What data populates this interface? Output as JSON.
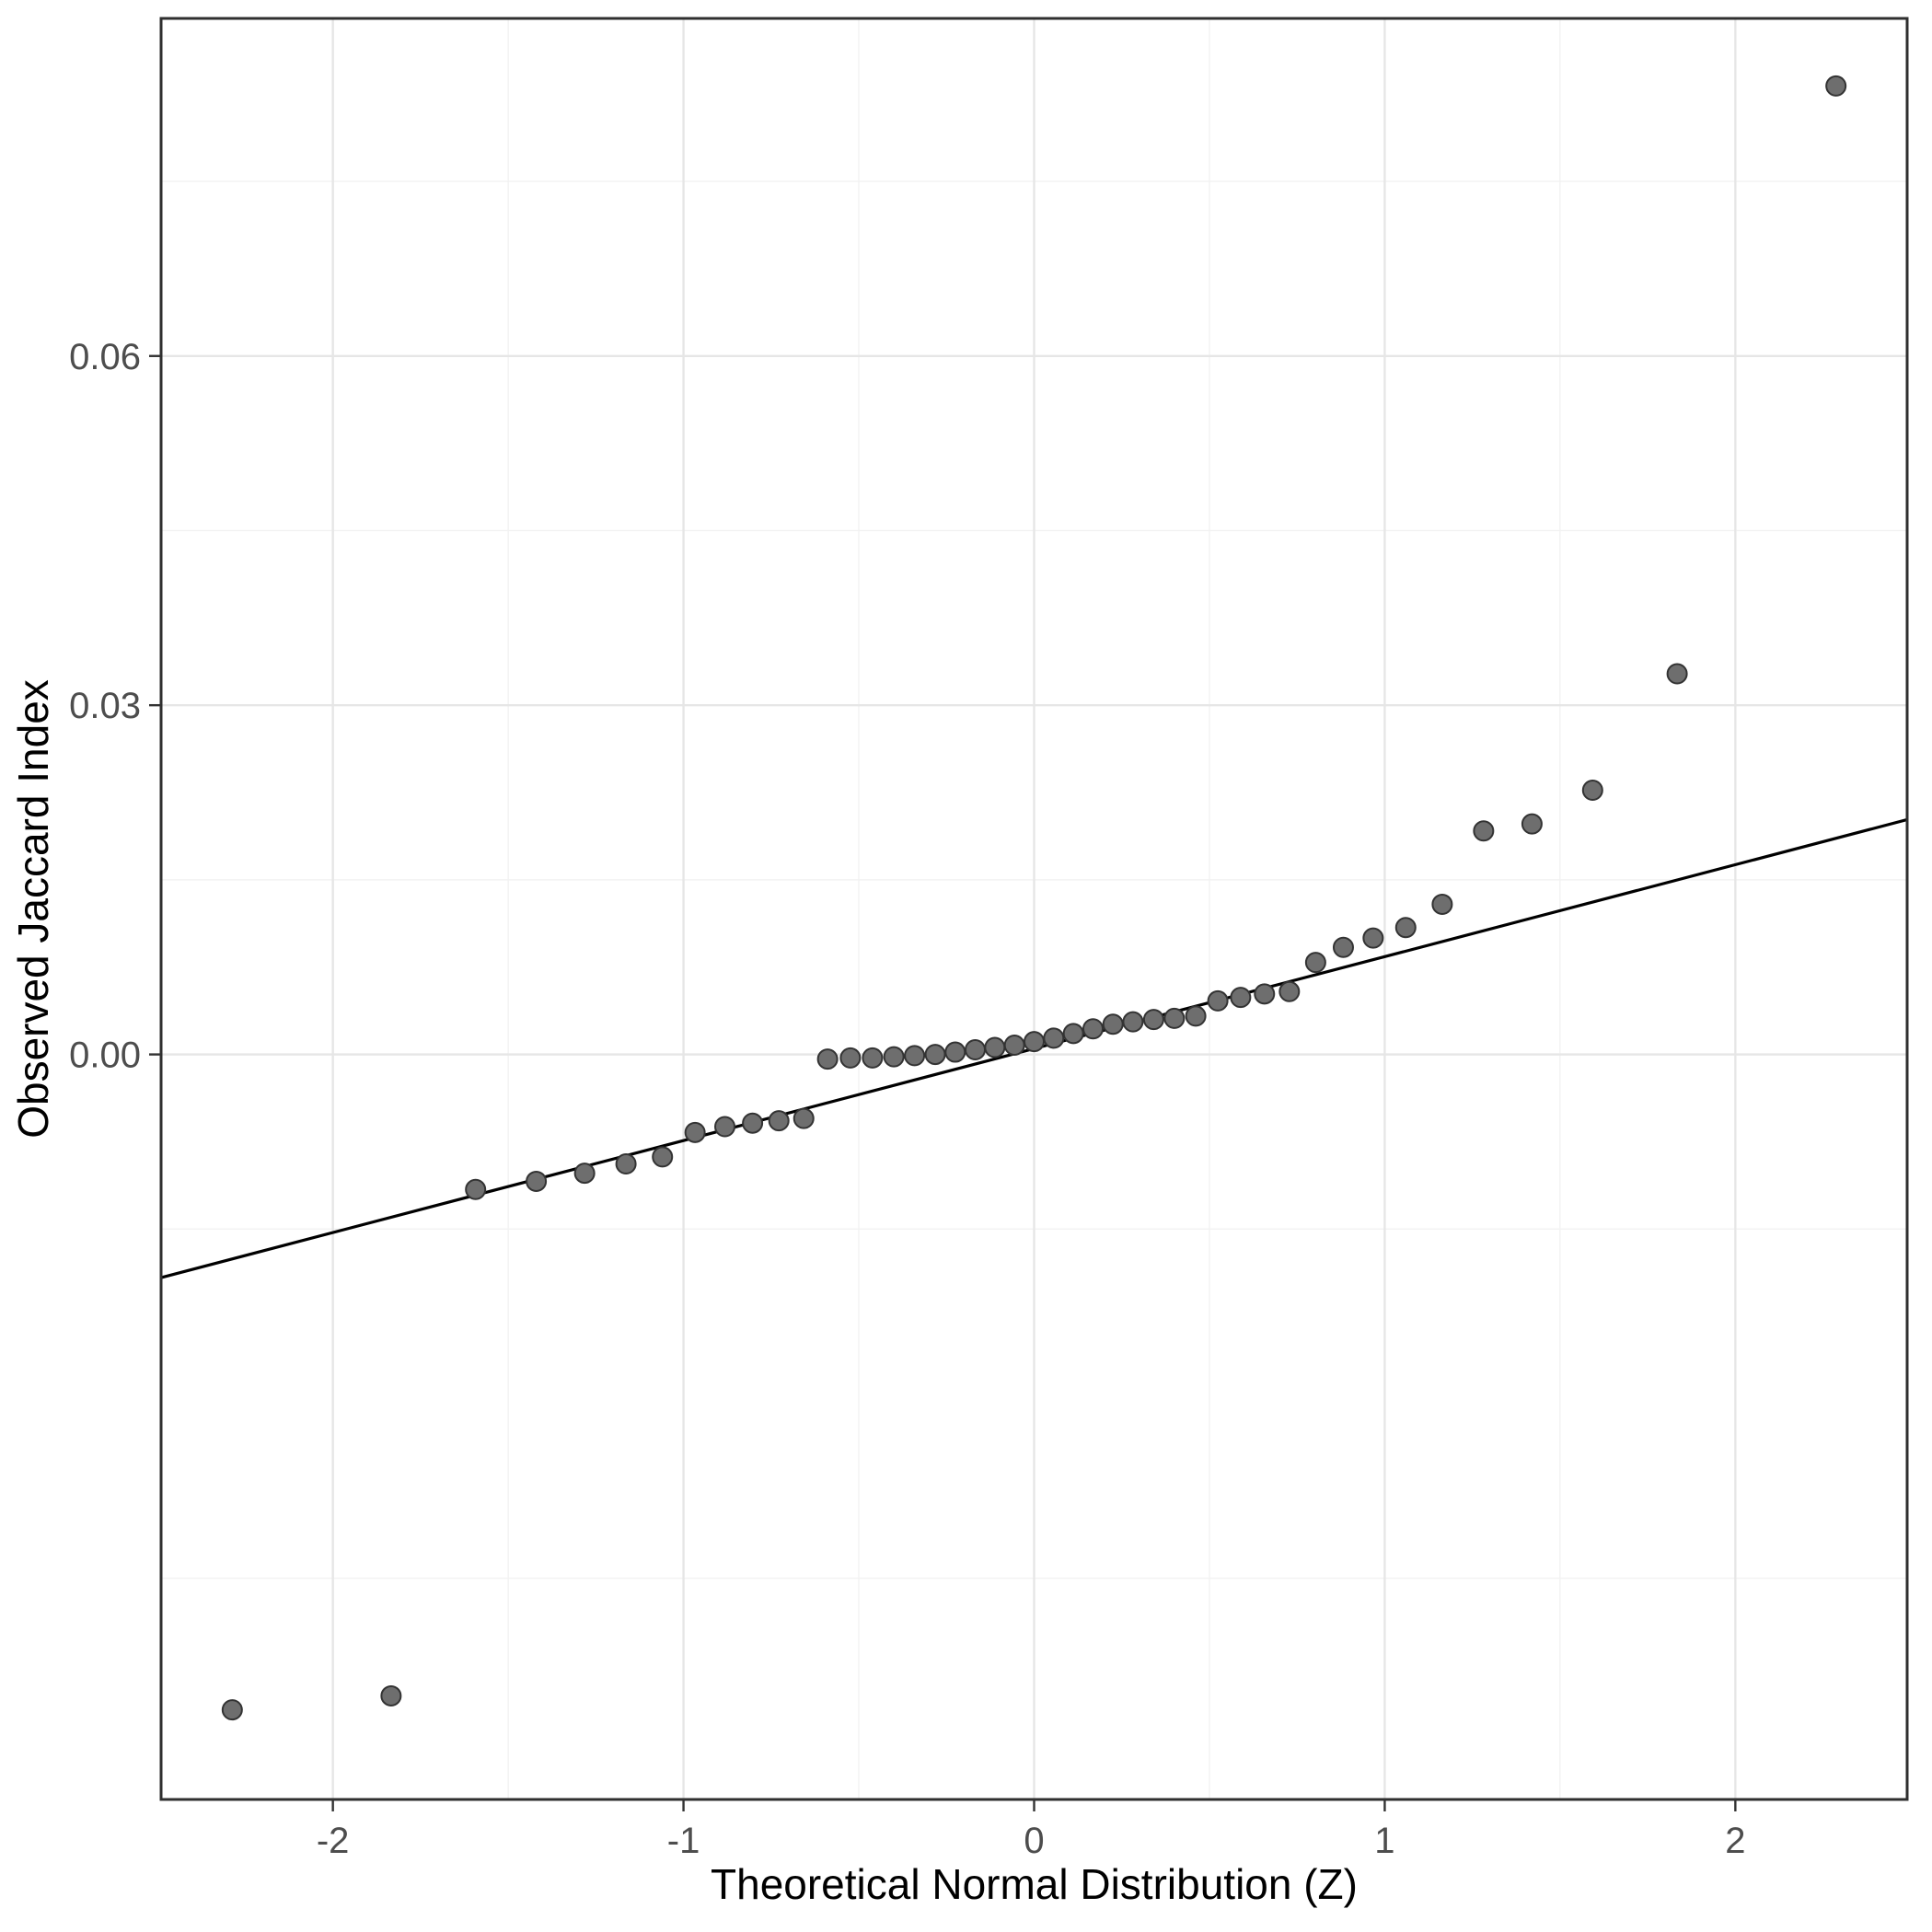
{
  "chart_data": {
    "type": "scatter",
    "title": "",
    "xlabel": "Theoretical Normal Distribution (Z)",
    "ylabel": "Observed Jaccard Index",
    "xlim": [
      -2.49,
      2.49
    ],
    "ylim": [
      -0.064,
      0.089
    ],
    "grid": true,
    "legend": "none",
    "x_ticks": {
      "values": [
        -2,
        -1,
        0,
        1,
        2
      ],
      "labels": [
        "-2",
        "-1",
        "0",
        "1",
        "2"
      ]
    },
    "y_ticks": {
      "values": [
        0.0,
        0.03,
        0.06
      ],
      "labels": [
        "0.00",
        "0.03",
        "0.06"
      ]
    },
    "x_minor": [
      -1.5,
      -0.5,
      0.5,
      1.5
    ],
    "y_minor": [
      -0.045,
      -0.015,
      0.015,
      0.045,
      0.075
    ],
    "reference_line": {
      "slope": 0.0079,
      "intercept": 0.0005
    },
    "series": [
      {
        "name": "qq-points",
        "points": [
          [
            -2.287,
            -0.0563
          ],
          [
            -1.834,
            -0.0551
          ],
          [
            -1.593,
            -0.0116
          ],
          [
            -1.42,
            -0.0109
          ],
          [
            -1.282,
            -0.0102
          ],
          [
            -1.164,
            -0.0094
          ],
          [
            -1.06,
            -0.0088
          ],
          [
            -0.967,
            -0.0067
          ],
          [
            -0.882,
            -0.0062
          ],
          [
            -0.803,
            -0.0059
          ],
          [
            -0.728,
            -0.0057
          ],
          [
            -0.657,
            -0.0055
          ],
          [
            -0.589,
            -0.0004
          ],
          [
            -0.524,
            -0.0003
          ],
          [
            -0.461,
            -0.0003
          ],
          [
            -0.4,
            -0.0002
          ],
          [
            -0.341,
            -0.0001
          ],
          [
            -0.282,
            0.0
          ],
          [
            -0.225,
            0.0002
          ],
          [
            -0.168,
            0.0004
          ],
          [
            -0.112,
            0.0006
          ],
          [
            -0.056,
            0.0008
          ],
          [
            0.0,
            0.0011
          ],
          [
            0.056,
            0.0014
          ],
          [
            0.112,
            0.0018
          ],
          [
            0.168,
            0.0022
          ],
          [
            0.225,
            0.0026
          ],
          [
            0.282,
            0.0028
          ],
          [
            0.341,
            0.003
          ],
          [
            0.4,
            0.0031
          ],
          [
            0.461,
            0.0033
          ],
          [
            0.524,
            0.0046
          ],
          [
            0.589,
            0.0049
          ],
          [
            0.657,
            0.0052
          ],
          [
            0.728,
            0.0054
          ],
          [
            0.803,
            0.0079
          ],
          [
            0.882,
            0.0092
          ],
          [
            0.967,
            0.01
          ],
          [
            1.06,
            0.0109
          ],
          [
            1.164,
            0.0129
          ],
          [
            1.282,
            0.0192
          ],
          [
            1.42,
            0.0198
          ],
          [
            1.593,
            0.0227
          ],
          [
            1.834,
            0.0327
          ],
          [
            2.287,
            0.0832
          ]
        ]
      }
    ]
  },
  "colors": {
    "background": "#ffffff",
    "panel_background": "#ffffff",
    "panel_border": "#2f2f2f",
    "grid_major": "#e6e6e6",
    "grid_minor": "#f2f2f2",
    "point_fill": "#6e6e6e",
    "point_stroke": "#333333",
    "reference_line": "#000000",
    "tick_mark": "#333333",
    "tick_label": "#4d4d4d",
    "axis_title": "#000000"
  }
}
